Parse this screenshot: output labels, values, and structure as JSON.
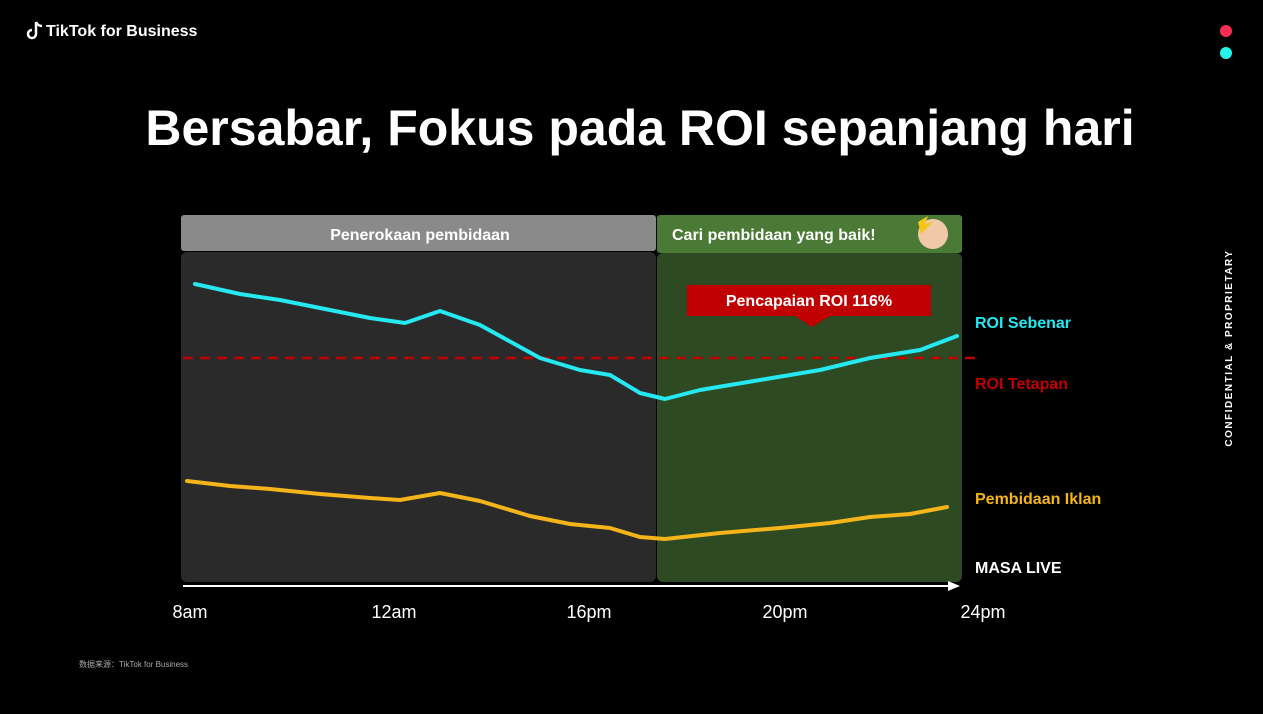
{
  "header": {
    "logo": "TikTok for Business"
  },
  "title": "Bersabar, Fokus pada ROI sepanjang hari",
  "chart": {
    "phases": [
      "Penerokaan pembidaan",
      "Cari pembidaan yang baik!"
    ],
    "callout": "Pencapaian ROI 116%",
    "series_labels": [
      "ROI Sebenar",
      "ROI Tetapan",
      "Pembidaan Iklan"
    ],
    "axis_label": "MASA LIVE",
    "x_labels": [
      "8am",
      "12am",
      "16pm",
      "20pm",
      "24pm"
    ]
  },
  "side_note": "CONFIDENTIAL & PROPRIETARY",
  "footer": "数据来源：TikTok for Business"
}
